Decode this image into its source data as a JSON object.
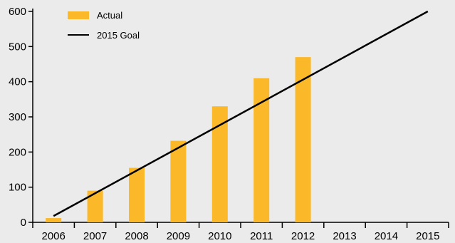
{
  "chart_data": {
    "type": "bar",
    "categories": [
      "2006",
      "2007",
      "2008",
      "2009",
      "2010",
      "2011",
      "2012",
      "2013",
      "2014",
      "2015"
    ],
    "series": [
      {
        "name": "Actual",
        "type": "bar",
        "color": "#fbb829",
        "values": [
          12,
          90,
          155,
          232,
          330,
          410,
          470,
          null,
          null,
          null
        ]
      },
      {
        "name": "2015 Goal",
        "type": "line",
        "color": "#000000",
        "x": [
          "2006",
          "2015"
        ],
        "values": [
          18,
          600
        ]
      }
    ],
    "ylim": [
      0,
      600
    ],
    "yticks": [
      0,
      100,
      200,
      300,
      400,
      500,
      600
    ],
    "title": "",
    "xlabel": "",
    "ylabel": "",
    "legend_position": "top-left",
    "grid": false
  }
}
